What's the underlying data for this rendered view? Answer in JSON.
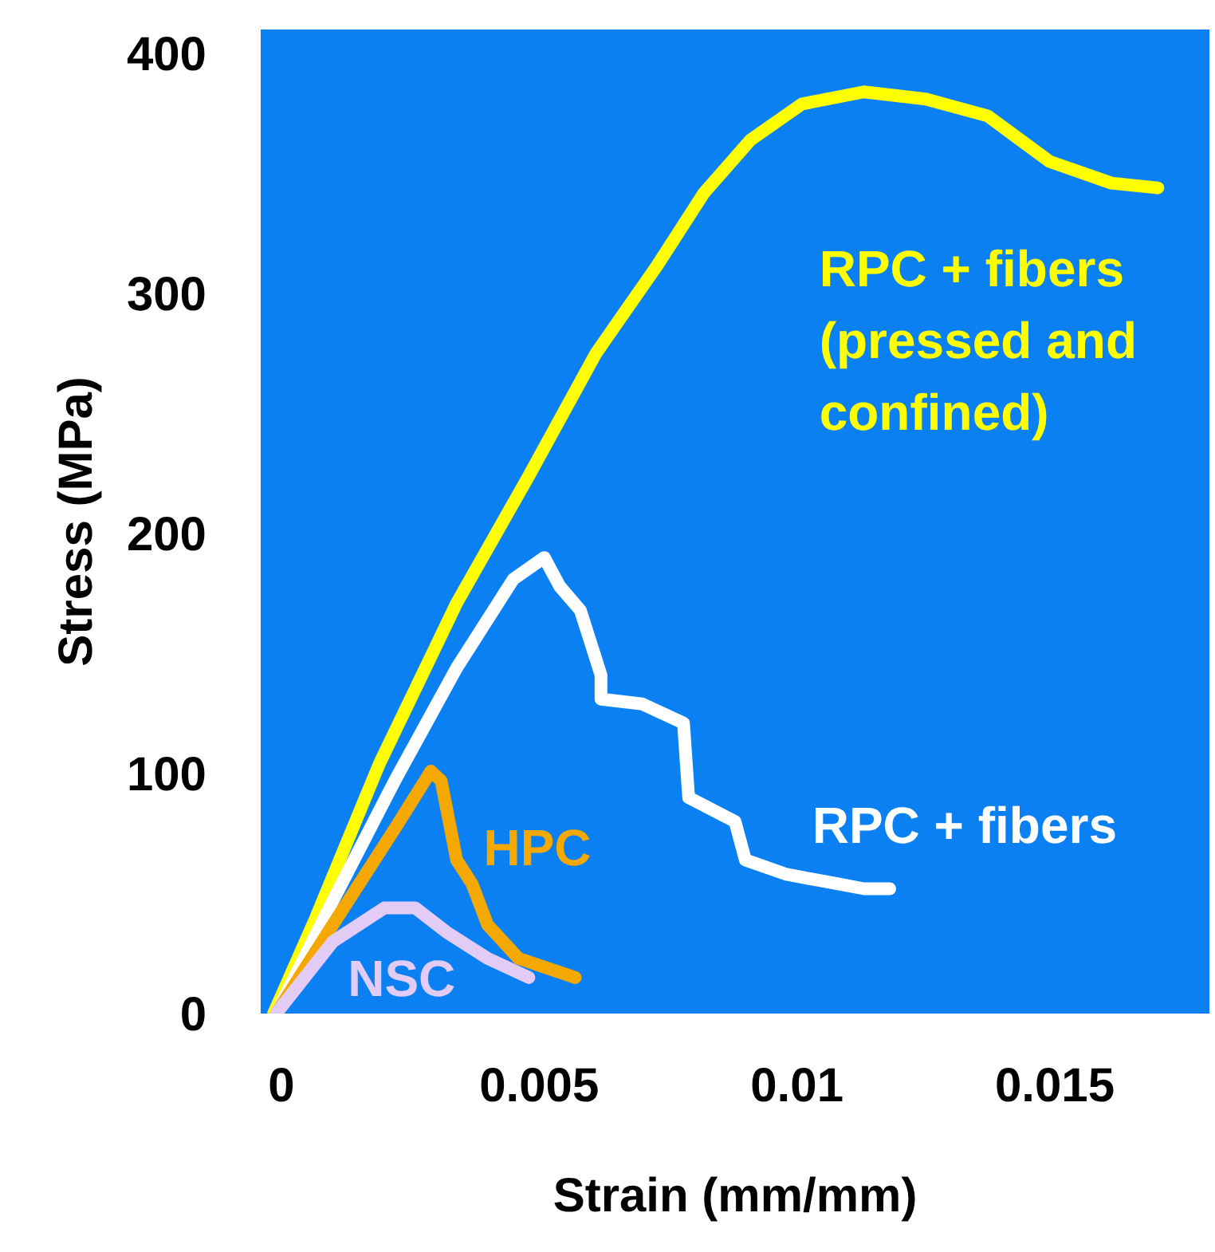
{
  "chart_data": {
    "type": "line",
    "xlabel": "Strain (mm/mm)",
    "ylabel": "Stress (MPa)",
    "xlim": [
      -0.0004,
      0.018
    ],
    "ylim": [
      0,
      410
    ],
    "xticks": [
      0,
      0.005,
      0.01,
      0.015
    ],
    "yticks": [
      0,
      100,
      200,
      300,
      400
    ],
    "grid": false,
    "marker": "none",
    "line_style": "solid",
    "series": [
      {
        "name": "RPC + fibers\n(pressed and\nconfined)",
        "color": "#ffff00",
        "x": [
          -0.00015,
          0.00067,
          0.0019,
          0.0034,
          0.0048,
          0.0061,
          0.0073,
          0.0082,
          0.0091,
          0.0101,
          0.0113,
          0.0125,
          0.0137,
          0.0149,
          0.0161,
          0.017
        ],
        "values": [
          0,
          40,
          104,
          171,
          224,
          275,
          312,
          342,
          364,
          379,
          384,
          381,
          374,
          355,
          346,
          344
        ]
      },
      {
        "name": "RPC + fibers",
        "color": "#ffffff",
        "x": [
          -0.0001,
          0.001,
          0.0022,
          0.0034,
          0.0045,
          0.0051,
          0.0054,
          0.0058,
          0.0062,
          0.0062,
          0.007,
          0.0078,
          0.0079,
          0.0088,
          0.009,
          0.0098,
          0.0108,
          0.0113,
          0.0118
        ],
        "values": [
          0,
          47,
          97,
          144,
          181,
          190,
          178,
          168,
          141,
          131,
          129,
          121,
          90,
          80,
          64,
          58,
          54,
          52,
          52
        ]
      },
      {
        "name": "HPC",
        "color": "#f5a800",
        "x": [
          -0.0001,
          0.001,
          0.0022,
          0.0029,
          0.0031,
          0.0034,
          0.0037,
          0.004,
          0.0046,
          0.0057
        ],
        "values": [
          0,
          37,
          77,
          101,
          97,
          64,
          54,
          37,
          23,
          15
        ]
      },
      {
        "name": "NSC",
        "color": "#e2cbf5",
        "x": [
          -0.0001,
          0.001,
          0.002,
          0.0026,
          0.0032,
          0.004,
          0.0048
        ],
        "values": [
          0,
          30,
          44,
          44,
          34,
          23,
          15
        ]
      }
    ]
  }
}
